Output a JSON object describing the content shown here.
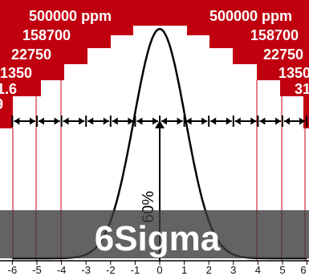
{
  "diagram": {
    "colors": {
      "step": "#c0000f",
      "curve": "#000000",
      "band": "#3c3c3c"
    },
    "ppm_left": [
      "500000 ppm",
      "158700",
      "22750",
      "1350",
      "1.6",
      "9"
    ],
    "ppm_right": [
      "500000 ppm",
      "158700",
      "22750",
      "1350",
      "31"
    ],
    "axis_ticks": [
      "-6",
      "-5",
      "-4",
      "-3",
      "-2",
      "-1",
      "0",
      "1",
      "2",
      "3",
      "4",
      "5",
      "6"
    ],
    "percent_label": "60%",
    "brand_label": "6Sigma",
    "icons": [
      "double-arrow-icon"
    ]
  }
}
